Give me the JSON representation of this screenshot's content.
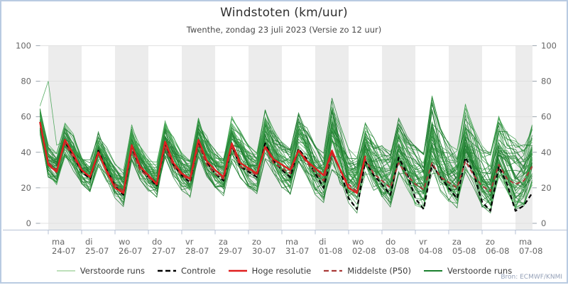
{
  "header": {
    "title": "Windstoten (km/uur)",
    "subtitle": "Twenthe, zondag 23 juli 2023 (Versie zo 12 uur)"
  },
  "source": "Bron: ECMWF/KNMI",
  "chart_data": {
    "type": "line",
    "title": "Windstoten (km/uur)",
    "subtitle": "Twenthe, zondag 23 juli 2023 (Versie zo 12 uur)",
    "ylabel": "",
    "ylim": [
      0,
      100
    ],
    "yticks": [
      0,
      20,
      40,
      60,
      80,
      100
    ],
    "grid": true,
    "legend_position": "bottom",
    "x": {
      "start": "zo 23-07 18:00",
      "end": "ma 07-08 12:00",
      "step_hours": 6,
      "points": 60,
      "days": [
        {
          "dow": "ma",
          "date": "24-07"
        },
        {
          "dow": "di",
          "date": "25-07"
        },
        {
          "dow": "wo",
          "date": "26-07"
        },
        {
          "dow": "do",
          "date": "27-07"
        },
        {
          "dow": "vr",
          "date": "28-07"
        },
        {
          "dow": "za",
          "date": "29-07"
        },
        {
          "dow": "zo",
          "date": "30-07"
        },
        {
          "dow": "ma",
          "date": "31-07"
        },
        {
          "dow": "di",
          "date": "01-08"
        },
        {
          "dow": "wo",
          "date": "02-08"
        },
        {
          "dow": "do",
          "date": "03-08"
        },
        {
          "dow": "vr",
          "date": "04-08"
        },
        {
          "dow": "za",
          "date": "05-08"
        },
        {
          "dow": "zo",
          "date": "06-08"
        },
        {
          "dow": "ma",
          "date": "07-08"
        }
      ]
    },
    "series": [
      {
        "name": "Controle",
        "style": "dashed",
        "color": "#000000",
        "width": 2.2,
        "values": [
          57,
          34,
          30,
          46,
          38,
          29,
          25,
          41,
          30,
          21,
          16,
          43,
          31,
          26,
          21,
          45,
          33,
          27,
          23,
          46,
          34,
          28,
          24,
          44,
          32,
          29,
          26,
          45,
          35,
          30,
          26,
          42,
          36,
          28,
          20,
          40,
          30,
          14,
          8,
          35,
          27,
          22,
          16,
          37,
          28,
          14,
          8,
          33,
          26,
          20,
          14,
          37,
          28,
          12,
          7,
          32,
          22,
          7,
          10,
          17
        ]
      },
      {
        "name": "Hoge resolutie",
        "style": "solid",
        "color": "#e01f1f",
        "width": 2.4,
        "values": [
          57,
          33,
          29,
          47,
          39,
          30,
          26,
          40,
          29,
          20,
          17,
          44,
          32,
          27,
          22,
          46,
          34,
          28,
          25,
          47,
          35,
          30,
          26,
          45,
          34,
          31,
          28,
          43,
          36,
          33,
          30,
          41,
          35,
          31,
          27,
          41,
          30,
          20,
          17,
          38
        ]
      },
      {
        "name": "Middelste (P50)",
        "style": "dashed",
        "color": "#a93a38",
        "width": 2.0,
        "values": [
          57,
          34,
          30,
          45,
          37,
          30,
          26,
          40,
          30,
          22,
          18,
          41,
          30,
          26,
          22,
          43,
          32,
          27,
          24,
          44,
          33,
          28,
          25,
          43,
          32,
          30,
          27,
          43,
          34,
          31,
          28,
          41,
          34,
          29,
          24,
          39,
          30,
          22,
          18,
          36,
          28,
          24,
          20,
          34,
          27,
          22,
          19,
          34,
          26,
          23,
          20,
          35,
          27,
          21,
          18,
          33,
          25,
          22,
          24,
          32
        ]
      }
    ],
    "ensemble": {
      "name": "Verstoorde runs",
      "count": 50,
      "colors": [
        "#3fa04d",
        "#1d7a2e"
      ],
      "width": 0.8,
      "outlier_start": [
        66,
        80,
        44
      ],
      "envelope_min": [
        51,
        26,
        22,
        38,
        30,
        22,
        18,
        32,
        24,
        14,
        10,
        34,
        24,
        18,
        14,
        36,
        26,
        18,
        15,
        36,
        26,
        20,
        16,
        34,
        26,
        20,
        17,
        36,
        27,
        20,
        16,
        34,
        26,
        16,
        12,
        30,
        22,
        8,
        6,
        26,
        18,
        12,
        9,
        28,
        20,
        10,
        7,
        26,
        18,
        12,
        9,
        28,
        20,
        9,
        6,
        26,
        18,
        8,
        10,
        22
      ],
      "envelope_max": [
        64,
        44,
        40,
        56,
        50,
        40,
        36,
        52,
        44,
        34,
        30,
        56,
        46,
        38,
        34,
        58,
        48,
        40,
        36,
        60,
        50,
        42,
        38,
        60,
        52,
        44,
        40,
        64,
        54,
        46,
        42,
        62,
        54,
        44,
        40,
        72,
        56,
        42,
        38,
        58,
        48,
        44,
        40,
        60,
        50,
        44,
        40,
        72,
        54,
        46,
        42,
        68,
        54,
        44,
        40,
        60,
        52,
        48,
        44,
        56
      ],
      "seed": 42
    },
    "legend": [
      {
        "label": "Verstoorde runs",
        "color": "#a9d6a4",
        "dash": false,
        "width": 1.6
      },
      {
        "label": "Controle",
        "color": "#000000",
        "dash": true,
        "width": 2.4
      },
      {
        "label": "Hoge resolutie",
        "color": "#e01f1f",
        "dash": false,
        "width": 2.6
      },
      {
        "label": "Middelste (P50)",
        "color": "#a93a38",
        "dash": true,
        "width": 2.2
      },
      {
        "label": "Verstoorde runs",
        "color": "#1a7f2e",
        "dash": false,
        "width": 2.0
      }
    ],
    "colors": {
      "band": "#ececec",
      "grid": "#e0e0e0",
      "axis_line": "#b6c2d4",
      "tick": "#9aa3ad",
      "tick_label": "#666666"
    }
  }
}
